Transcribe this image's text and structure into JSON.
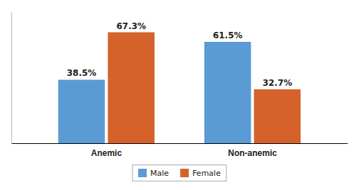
{
  "chart_data": {
    "type": "bar",
    "categories": [
      "Anemic",
      "Non-anemic"
    ],
    "series": [
      {
        "name": "Male",
        "color": "#5B9BD5",
        "values": [
          38.5,
          61.5
        ],
        "value_labels": [
          "38.5%",
          "61.5%"
        ]
      },
      {
        "name": "Female",
        "color": "#D4622A",
        "values": [
          67.3,
          32.7
        ],
        "value_labels": [
          "67.3%",
          "32.7%"
        ]
      }
    ],
    "ylim": [
      0,
      80
    ],
    "data_labels": true,
    "tick_labels": "x",
    "legend": "bottom"
  }
}
